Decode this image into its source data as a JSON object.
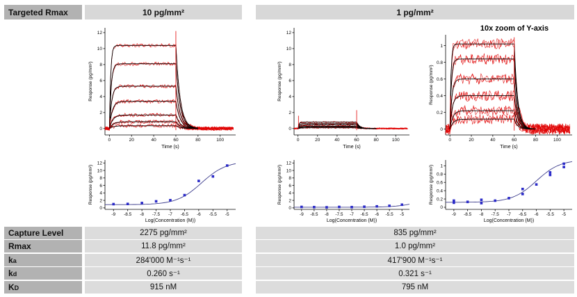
{
  "header": {
    "row_label": "Targeted Rmax",
    "col1": "10 pg/mm²",
    "col2": "1 pg/mm²"
  },
  "table": {
    "rows": [
      {
        "label": "Capture Level",
        "sub": "",
        "col1": "2275 pg/mm²",
        "col2": "835 pg/mm²"
      },
      {
        "label": "Rmax",
        "sub": "",
        "col1": "11.8 pg/mm²",
        "col2": "1.0 pg/mm²"
      },
      {
        "label": "k",
        "sub": "a",
        "col1": "284'000 M⁻¹s⁻¹",
        "col2": "417'900 M⁻¹s⁻¹"
      },
      {
        "label": "k",
        "sub": "d",
        "col1": "0.260 s⁻¹",
        "col2": "0.321 s⁻¹"
      },
      {
        "label": "K",
        "sub": "D",
        "col1": "915 nM",
        "col2": "795 nM"
      }
    ]
  },
  "chart_data": [
    {
      "id": "sens-10pg",
      "type": "line",
      "title": "",
      "xlabel": "Time (s)",
      "ylabel": "Response (pg/mm²)",
      "xlim": [
        -4,
        114
      ],
      "ylim": [
        -0.8,
        12.6
      ],
      "xticks": [
        0,
        20,
        40,
        60,
        80,
        100
      ],
      "yticks": [
        0,
        2,
        4,
        6,
        8,
        10,
        12
      ],
      "assoc_end": 60,
      "t_end": 112,
      "kd": 0.26,
      "plateaus": [
        10.4,
        8.1,
        5.3,
        3.4,
        1.7,
        0.85,
        0.35
      ],
      "kobs": [
        0.9,
        0.65,
        0.5,
        0.4,
        0.33,
        0.3,
        0.28
      ],
      "noise": 0.16,
      "spike_top": 12.2,
      "spike0": 1.3,
      "line_color": "#e00000",
      "fit_color": "#000000",
      "seed": 11
    },
    {
      "id": "sens-1pg",
      "type": "line",
      "title": "",
      "xlabel": "Time (s)",
      "ylabel": "Response (pg/mm²)",
      "xlim": [
        -4,
        114
      ],
      "ylim": [
        -0.8,
        12.6
      ],
      "xticks": [
        0,
        20,
        40,
        60,
        80,
        100
      ],
      "yticks": [
        0,
        2,
        4,
        6,
        8,
        10,
        12
      ],
      "assoc_end": 60,
      "t_end": 112,
      "kd": 0.32,
      "plateaus": [
        0.8,
        0.62,
        0.46,
        0.3,
        0.18,
        0.1
      ],
      "kobs": [
        1.0,
        0.75,
        0.55,
        0.45,
        0.38,
        0.33
      ],
      "noise": 0.06,
      "spike_top": 2.3,
      "spike0": 1.6,
      "line_color": "#e00000",
      "fit_color": "#000000",
      "seed": 23
    },
    {
      "id": "sens-1pg-zoom",
      "type": "line",
      "title": "10x zoom of Y-axis",
      "xlabel": "Time (s)",
      "ylabel": "Response (pg/mm²)",
      "xlim": [
        -4,
        114
      ],
      "ylim": [
        -0.07,
        1.13
      ],
      "xticks": [
        0,
        20,
        40,
        60,
        80,
        100
      ],
      "yticks": [
        0,
        0.2,
        0.4,
        0.6,
        0.8,
        1
      ],
      "assoc_end": 60,
      "t_end": 112,
      "kd": 0.32,
      "plateaus": [
        1.02,
        0.84,
        0.6,
        0.4,
        0.22,
        0.12
      ],
      "kobs": [
        1.0,
        0.75,
        0.55,
        0.45,
        0.38,
        0.33
      ],
      "noise": 0.045,
      "spike_top": 1.1,
      "spike0": 0.4,
      "line_color": "#e00000",
      "fit_color": "#000000",
      "seed": 37
    },
    {
      "id": "dose-10pg",
      "type": "scatter",
      "title": "",
      "xlabel": "Log(Concentration (M))",
      "ylabel": "Response (pg/mm²)",
      "xlim": [
        -9.3,
        -4.7
      ],
      "ylim": [
        -0.4,
        12.8
      ],
      "xticks": [
        -9,
        -8.5,
        -8,
        -7.5,
        -7,
        -6.5,
        -6,
        -5.5,
        -5
      ],
      "yticks": [
        0,
        2,
        4,
        6,
        8,
        10,
        12
      ],
      "points": [
        [
          -9,
          1.0
        ],
        [
          -8.5,
          1.05
        ],
        [
          -8,
          1.3
        ],
        [
          -7.5,
          1.75
        ],
        [
          -7,
          2.05
        ],
        [
          -6.5,
          3.4
        ],
        [
          -6,
          7.2
        ],
        [
          -5.5,
          8.4
        ],
        [
          -5,
          11.3
        ]
      ],
      "fit": {
        "bottom": 0.85,
        "top": 12.5,
        "logec50": -5.9,
        "hill": 1
      },
      "marker_color": "#2a2ac8",
      "line_color": "#3c3c8c"
    },
    {
      "id": "dose-1pg",
      "type": "scatter",
      "title": "",
      "xlabel": "Log(Concentration (M))",
      "ylabel": "Response (pg/mm²)",
      "xlim": [
        -9.3,
        -4.7
      ],
      "ylim": [
        -0.4,
        12.8
      ],
      "xticks": [
        -9,
        -8.5,
        -8,
        -7.5,
        -7,
        -6.5,
        -6,
        -5.5,
        -5
      ],
      "yticks": [
        0,
        2,
        4,
        6,
        8,
        10,
        12
      ],
      "points": [
        [
          -9,
          0.25
        ],
        [
          -8.5,
          0.2
        ],
        [
          -8,
          0.15
        ],
        [
          -7.5,
          0.25
        ],
        [
          -7,
          0.2
        ],
        [
          -6.5,
          0.3
        ],
        [
          -6,
          0.4
        ],
        [
          -5.5,
          0.55
        ],
        [
          -5,
          0.85
        ]
      ],
      "fit": {
        "bottom": 0.18,
        "top": 3.0,
        "logec50": -4.3,
        "hill": 1
      },
      "marker_color": "#2a2ac8",
      "line_color": "#3c3c8c"
    },
    {
      "id": "dose-1pg-zoom",
      "type": "scatter",
      "title": "",
      "xlabel": "Log(Concentration (M))",
      "ylabel": "Response (pg/mm²)",
      "xlim": [
        -9.3,
        -4.7
      ],
      "ylim": [
        -0.05,
        1.14
      ],
      "xticks": [
        -9,
        -8.5,
        -8,
        -7.5,
        -7,
        -6.5,
        -6,
        -5.5,
        -5
      ],
      "yticks": [
        0,
        0.2,
        0.4,
        0.6,
        0.8,
        1
      ],
      "points": [
        [
          -9,
          0.16
        ],
        [
          -9,
          0.11
        ],
        [
          -8.5,
          0.13
        ],
        [
          -8,
          0.1
        ],
        [
          -8,
          0.18
        ],
        [
          -7.5,
          0.16
        ],
        [
          -7,
          0.22
        ],
        [
          -6.5,
          0.32
        ],
        [
          -6.5,
          0.44
        ],
        [
          -6,
          0.55
        ],
        [
          -5.5,
          0.78
        ],
        [
          -5.5,
          0.84
        ],
        [
          -5,
          0.97
        ],
        [
          -5,
          1.05
        ]
      ],
      "fit": {
        "bottom": 0.12,
        "top": 1.15,
        "logec50": -6.0,
        "hill": 1
      },
      "marker_color": "#2a2ac8",
      "line_color": "#3c3c8c"
    }
  ]
}
